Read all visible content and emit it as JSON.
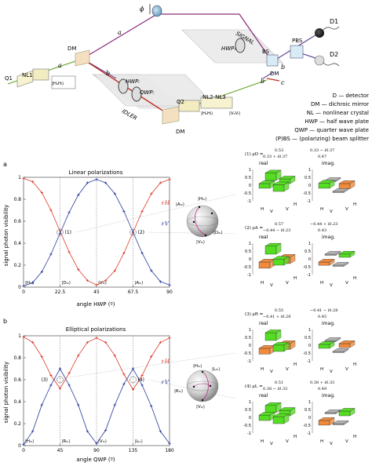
{
  "setup": {
    "phi": "ϕ",
    "path_a": "a",
    "path_a2": "a",
    "path_b": "b",
    "path_b2": "b",
    "path_b3": "b",
    "path_c": "c",
    "dm_top": "DM",
    "dm_bottom": "DM",
    "dm_right": "DM",
    "q1": "Q1",
    "nl1": "NL1",
    "hwp_i": "HWPᵢ",
    "qwp_i": "QWPᵢ",
    "hwp_s": "HWPₛ",
    "signal": "SIGNAL",
    "idler": "IDLER",
    "q2": "Q2",
    "nl23": "NL2-NL3",
    "bs": "BS",
    "pbs": "PBS",
    "d1": "D1",
    "d2": "D2",
    "ket_hh": "|HₛHᵢ⟩",
    "ket_hh2": "|HₛHᵢ⟩",
    "ket_vv": "|VₛVᵢ⟩"
  },
  "legend": [
    "D — detector",
    "DM — dichroic mirror",
    "NL — nonlinear crystal",
    "HWP — half wave plate",
    "QWP — quarter wave plate",
    "(P)BS — (polarizing) beam splitter"
  ],
  "panel_a": {
    "letter": "a",
    "title": "Linear polarizations",
    "ylabel": "signal photon visibility",
    "xlabel": "angle HWP (º)",
    "series_labels": [
      "𝒱H",
      "𝒱V"
    ],
    "state_labels": [
      "|Hᵢᵥ⟩",
      "|Dᵢᵥ⟩",
      "|Vᵢᵥ⟩",
      "|Aᵢᵥ⟩"
    ],
    "markers": [
      "(1)",
      "(2)"
    ],
    "sphere_labels": [
      "|Aᵢᵥ⟩",
      "|Hᵢᵥ⟩",
      "|Dᵢᵥ⟩",
      "|Vᵢᵥ⟩"
    ]
  },
  "panel_b": {
    "letter": "b",
    "title": "Elliptical polarizations",
    "ylabel": "signal photon visibility",
    "xlabel": "angle QWP (º)",
    "series_labels": [
      "𝒱H",
      "𝒱V"
    ],
    "state_labels": [
      "|Hᵢᵥ⟩",
      "|Rᵢᵥ⟩",
      "|Vᵢᵥ⟩",
      "|Lᵢᵥ⟩"
    ],
    "markers": [
      "(3)",
      "(4)"
    ],
    "sphere_labels": [
      "|Hᵢᵥ⟩",
      "|Lᵢᵥ⟩",
      "|Rᵢᵥ⟩",
      "|Vᵢᵥ⟩"
    ]
  },
  "matrices": [
    {
      "id": "(1)",
      "sym": "ρD",
      "a": "0.53",
      "b": "0.33 − i0.37",
      "c": "0.33 + i0.37",
      "d": "0.47",
      "real": [
        [
          0.53,
          0.33
        ],
        [
          0.33,
          0.47
        ]
      ],
      "imag": [
        [
          0,
          -0.37
        ],
        [
          0.37,
          0
        ]
      ]
    },
    {
      "id": "(2)",
      "sym": "ρA",
      "a": "0.57",
      "b": "−0.44 + i0.23",
      "c": "−0.44 − i0.23",
      "d": "0.43",
      "real": [
        [
          0.57,
          -0.44
        ],
        [
          -0.44,
          0.43
        ]
      ],
      "imag": [
        [
          0,
          0.23
        ],
        [
          -0.23,
          0
        ]
      ]
    },
    {
      "id": "(3)",
      "sym": "ρR",
      "a": "0.55",
      "b": "−0.41 − i0.28",
      "c": "−0.41 + i0.28",
      "d": "0.45",
      "real": [
        [
          0.55,
          -0.41
        ],
        [
          -0.41,
          0.45
        ]
      ],
      "imag": [
        [
          0,
          -0.28
        ],
        [
          0.28,
          0
        ]
      ]
    },
    {
      "id": "(4)",
      "sym": "ρL",
      "a": "0.51",
      "b": "0.38 + i0.33",
      "c": "0.38 − i0.33",
      "d": "0.49",
      "real": [
        [
          0.51,
          0.38
        ],
        [
          0.38,
          0.49
        ]
      ],
      "imag": [
        [
          0,
          0.33
        ],
        [
          -0.33,
          0
        ]
      ]
    }
  ],
  "bar_axis": {
    "real": "real",
    "imag": "imag.",
    "ticks": [
      "1",
      "0.5",
      "0",
      "-0.5",
      "-1"
    ],
    "h": "H",
    "v": "V"
  },
  "colors": {
    "red": "#d93b2b",
    "blue": "#2a3a9c",
    "green": "#55dd22",
    "orange": "#f08a3c",
    "gray": "#b4b4b4"
  },
  "chart_data": [
    {
      "type": "line",
      "title": "Linear polarizations",
      "xlabel": "angle HWP (º)",
      "ylabel": "signal photon visibility",
      "xlim": [
        0,
        90
      ],
      "ylim": [
        0,
        1
      ],
      "xticks": [
        0,
        22.5,
        45,
        67.5,
        90
      ],
      "yticks": [
        0,
        0.2,
        0.4,
        0.6,
        0.8,
        1
      ],
      "x": [
        0,
        5.6,
        11.3,
        16.9,
        22.5,
        28.1,
        33.8,
        39.4,
        45,
        50.6,
        56.3,
        61.9,
        67.5,
        73.1,
        78.8,
        84.4,
        90
      ],
      "series": [
        {
          "name": "𝒱H",
          "color": "red",
          "values": [
            0.99,
            0.96,
            0.86,
            0.7,
            0.51,
            0.32,
            0.16,
            0.06,
            0.02,
            0.06,
            0.15,
            0.31,
            0.5,
            0.69,
            0.85,
            0.95,
            0.98
          ]
        },
        {
          "name": "𝒱V",
          "color": "blue",
          "values": [
            0.01,
            0.04,
            0.14,
            0.3,
            0.49,
            0.68,
            0.84,
            0.95,
            0.98,
            0.95,
            0.85,
            0.69,
            0.5,
            0.31,
            0.15,
            0.05,
            0.02
          ]
        }
      ]
    },
    {
      "type": "line",
      "title": "Elliptical polarizations",
      "xlabel": "angle QWP (º)",
      "ylabel": "signal photon visibility",
      "xlim": [
        0,
        180
      ],
      "ylim": [
        0,
        1
      ],
      "xticks": [
        0,
        45,
        90,
        135,
        180
      ],
      "yticks": [
        0,
        0.2,
        0.4,
        0.6,
        0.8,
        1
      ],
      "x": [
        0,
        11.25,
        22.5,
        33.75,
        45,
        56.25,
        67.5,
        78.75,
        90,
        101.25,
        112.5,
        123.75,
        135,
        146.25,
        157.5,
        168.75,
        180
      ],
      "series": [
        {
          "name": "𝒱H",
          "color": "red",
          "values": [
            0.99,
            0.94,
            0.81,
            0.64,
            0.52,
            0.66,
            0.82,
            0.94,
            0.98,
            0.94,
            0.82,
            0.65,
            0.51,
            0.64,
            0.81,
            0.94,
            0.98
          ]
        },
        {
          "name": "𝒱V",
          "color": "blue",
          "values": [
            0.01,
            0.13,
            0.37,
            0.55,
            0.7,
            0.55,
            0.37,
            0.13,
            0.02,
            0.14,
            0.37,
            0.56,
            0.7,
            0.55,
            0.36,
            0.13,
            0.02
          ]
        }
      ]
    }
  ]
}
